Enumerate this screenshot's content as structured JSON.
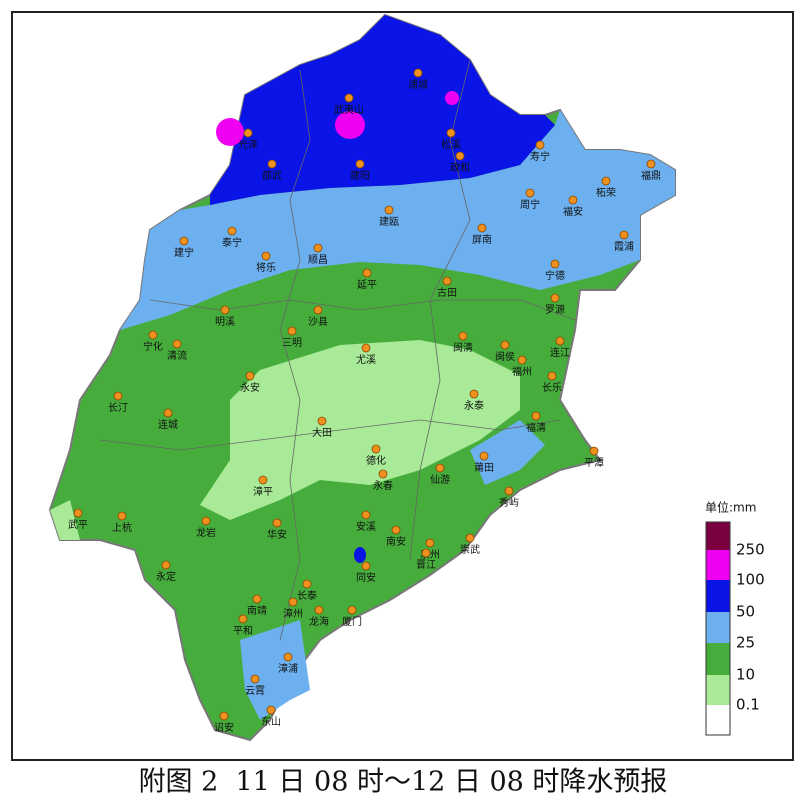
{
  "cities": [
    "浦城",
    "武夷山",
    "光泽",
    "松溪",
    "政和",
    "寿宁",
    "福鼎",
    "邵武",
    "建阳",
    "柘荣",
    "周宁",
    "福安",
    "建瓯",
    "霞浦",
    "建宁",
    "泰宁",
    "屏南",
    "将乐",
    "顺昌",
    "宁德",
    "延平",
    "古田",
    "罗源",
    "明溪",
    "沙县",
    "宁化",
    "清流",
    "三明",
    "闽清",
    "闽侯",
    "连江",
    "尤溪",
    "福州",
    "永安",
    "长乐",
    "长汀",
    "永泰",
    "连城",
    "福清",
    "大田",
    "平潭",
    "德化",
    "莆田",
    "永春",
    "仙游",
    "漳平",
    "秀屿",
    "武平",
    "上杭",
    "龙岩",
    "华安",
    "安溪",
    "南安",
    "泉州",
    "崇武",
    "晋江",
    "永定",
    "同安",
    "长泰",
    "南靖",
    "漳州",
    "龙海",
    "厦门",
    "平和",
    "漳浦",
    "云霄",
    "诏安",
    "东山"
  ],
  "legend": {
    "title": "单位:mm",
    "levels": [
      250,
      100,
      50,
      25,
      10,
      0.1
    ]
  },
  "caption": "附图 2  11 日 08 时～12 日 08 时降水预报"
}
